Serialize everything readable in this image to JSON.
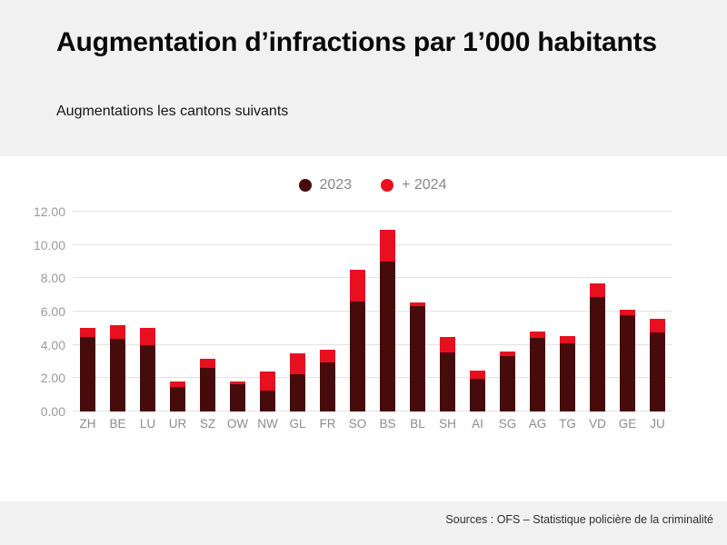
{
  "header": {
    "title": "Augmentation d’infractions par 1’000 habitants",
    "subtitle": "Augmentations les cantons suivants"
  },
  "footer": {
    "source": "Sources : OFS – Statistique policière de la criminalité"
  },
  "colors": {
    "header_bg": "#f1f1f1",
    "panel_bg": "#ffffff",
    "grid": "#e3e3e3",
    "axis_text": "#9b9b9b",
    "legend_text": "#878787",
    "series_2023": "#470b0c",
    "series_2024": "#e8101e"
  },
  "chart_data": {
    "type": "bar",
    "stacked": true,
    "title": "Augmentation d’infractions par 1’000 habitants",
    "subtitle": "Augmentations les cantons suivants",
    "categories": [
      "ZH",
      "BE",
      "LU",
      "UR",
      "SZ",
      "OW",
      "NW",
      "GL",
      "FR",
      "SO",
      "BS",
      "BL",
      "SH",
      "AI",
      "SG",
      "AG",
      "TG",
      "VD",
      "GE",
      "JU"
    ],
    "series": [
      {
        "name": "2023",
        "color": "#470b0c",
        "values": [
          4.5,
          4.35,
          4.0,
          1.5,
          2.6,
          1.65,
          1.25,
          2.25,
          2.95,
          6.6,
          9.0,
          6.35,
          3.55,
          1.95,
          3.35,
          4.4,
          4.1,
          6.9,
          5.8,
          4.75
        ]
      },
      {
        "name": "+ 2024",
        "color": "#e8101e",
        "values": [
          0.5,
          0.85,
          1.0,
          0.3,
          0.55,
          0.15,
          1.15,
          1.25,
          0.75,
          1.9,
          1.9,
          0.2,
          0.9,
          0.5,
          0.25,
          0.4,
          0.45,
          0.8,
          0.3,
          0.8
        ]
      }
    ],
    "stack_totals": [
      5.0,
      5.2,
      5.0,
      1.8,
      3.15,
      1.8,
      2.4,
      3.5,
      3.7,
      8.5,
      10.9,
      6.55,
      4.45,
      2.45,
      3.6,
      4.8,
      4.55,
      7.7,
      6.1,
      5.55
    ],
    "xlabel": "",
    "ylabel": "",
    "ylim": [
      0,
      12
    ],
    "yticks": [
      "0.00",
      "2.00",
      "4.00",
      "6.00",
      "8.00",
      "10.00",
      "12.00"
    ],
    "grid": "horizontal",
    "legend_position": "top-center"
  }
}
